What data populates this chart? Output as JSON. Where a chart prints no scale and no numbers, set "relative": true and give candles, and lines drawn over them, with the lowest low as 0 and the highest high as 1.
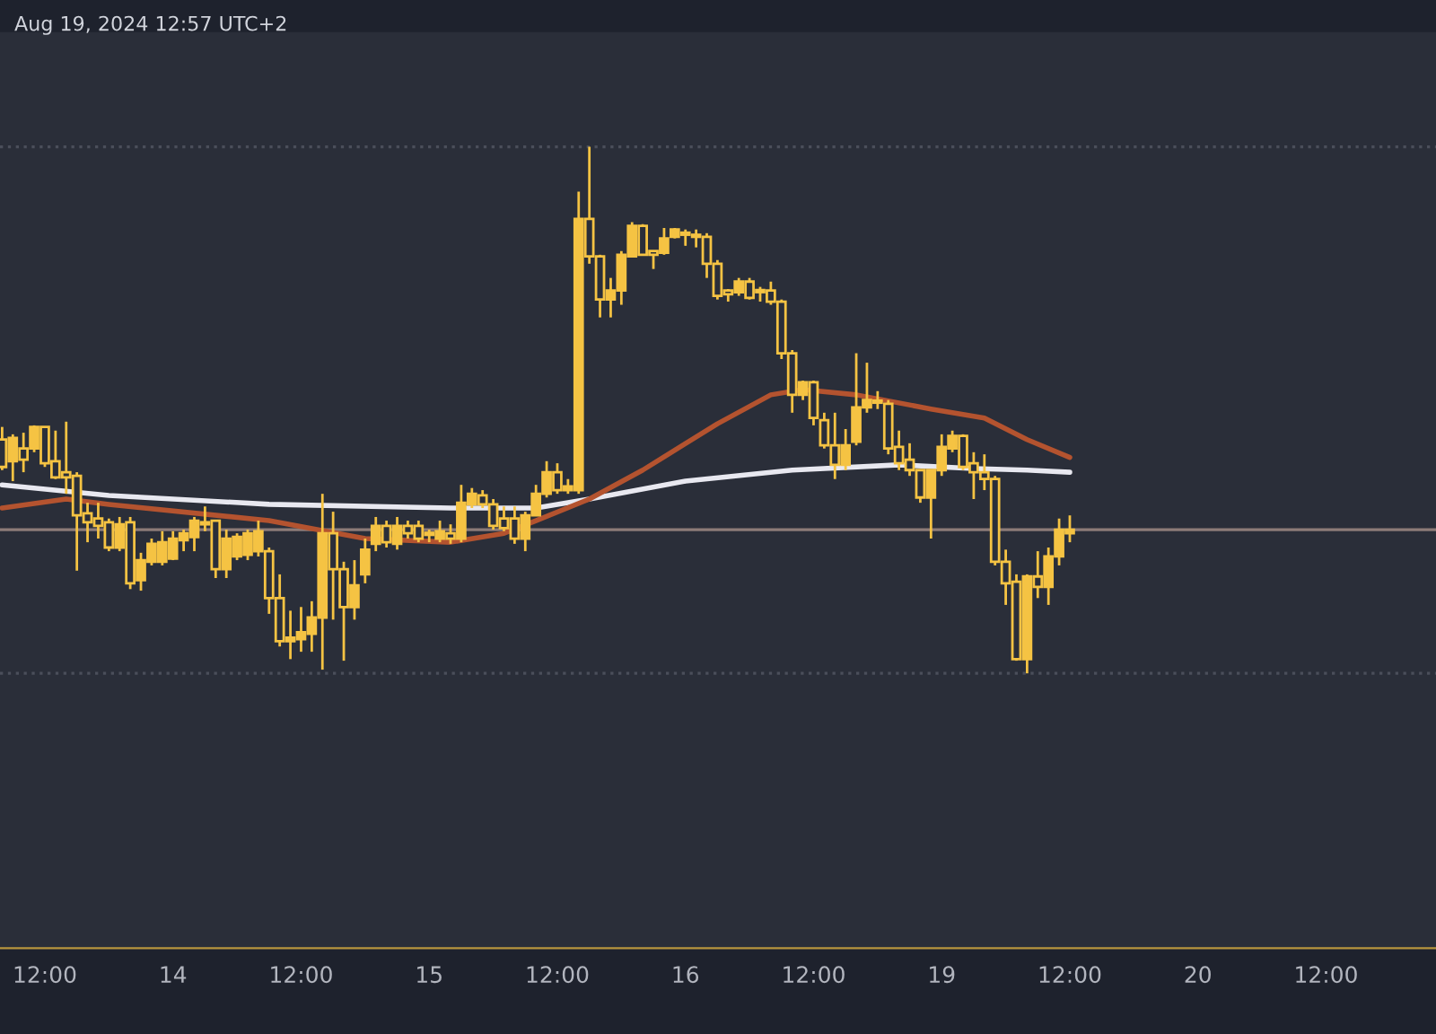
{
  "chart_data": {
    "type": "candlestick",
    "relative": true,
    "color": "#f5c343",
    "categories": [
      null,
      null,
      null,
      null,
      "12:00",
      null,
      null,
      null,
      null,
      null,
      null,
      null,
      null,
      null,
      null,
      null,
      "14",
      null,
      null,
      null,
      null,
      null,
      null,
      null,
      null,
      null,
      null,
      null,
      "12:00",
      null,
      null,
      null,
      null,
      null,
      null,
      null,
      null,
      null,
      null,
      null,
      "15",
      null,
      null,
      null,
      null,
      null,
      null,
      null,
      null,
      null,
      null,
      null,
      "12:00",
      null,
      null,
      null,
      null,
      null,
      null,
      null,
      null,
      null,
      null,
      null,
      "16",
      null,
      null,
      null,
      null,
      null,
      null,
      null,
      null,
      null,
      null,
      null,
      "12:00",
      null,
      null,
      null,
      null,
      null,
      null,
      null,
      null,
      null,
      null,
      null,
      "19",
      null,
      null,
      null,
      null,
      null,
      null,
      null,
      null,
      null,
      null,
      null,
      "12:00",
      null,
      null,
      null,
      null,
      null,
      null,
      null,
      null,
      null,
      null,
      null,
      "20",
      null,
      null,
      null,
      null,
      null,
      null,
      null,
      null,
      null,
      null,
      null,
      "12:00",
      null,
      null,
      null,
      null,
      null,
      null,
      null,
      null,
      null,
      null
    ],
    "ohlc": [
      [
        0.444,
        0.468,
        0.386,
        0.392
      ],
      [
        0.403,
        0.454,
        0.365,
        0.447
      ],
      [
        0.427,
        0.457,
        0.382,
        0.406
      ],
      [
        0.427,
        0.471,
        0.42,
        0.468
      ],
      [
        0.468,
        0.468,
        0.392,
        0.399
      ],
      [
        0.403,
        0.461,
        0.369,
        0.372
      ],
      [
        0.382,
        0.478,
        0.341,
        0.372
      ],
      [
        0.375,
        0.382,
        0.195,
        0.3
      ],
      [
        0.304,
        0.324,
        0.249,
        0.287
      ],
      [
        0.294,
        0.324,
        0.256,
        0.28
      ],
      [
        0.287,
        0.294,
        0.232,
        0.239
      ],
      [
        0.239,
        0.297,
        0.232,
        0.283
      ],
      [
        0.287,
        0.297,
        0.16,
        0.171
      ],
      [
        0.177,
        0.229,
        0.157,
        0.215
      ],
      [
        0.212,
        0.256,
        0.205,
        0.246
      ],
      [
        0.212,
        0.27,
        0.205,
        0.249
      ],
      [
        0.218,
        0.27,
        0.215,
        0.256
      ],
      [
        0.253,
        0.273,
        0.232,
        0.266
      ],
      [
        0.259,
        0.297,
        0.232,
        0.29
      ],
      [
        0.287,
        0.317,
        0.27,
        0.283
      ],
      [
        0.29,
        0.29,
        0.181,
        0.198
      ],
      [
        0.198,
        0.273,
        0.181,
        0.256
      ],
      [
        0.222,
        0.266,
        0.215,
        0.259
      ],
      [
        0.225,
        0.273,
        0.215,
        0.266
      ],
      [
        0.232,
        0.29,
        0.222,
        0.27
      ],
      [
        0.232,
        0.239,
        0.113,
        0.143
      ],
      [
        0.143,
        0.188,
        0.051,
        0.061
      ],
      [
        0.061,
        0.119,
        0.027,
        0.068
      ],
      [
        0.065,
        0.126,
        0.041,
        0.078
      ],
      [
        0.075,
        0.137,
        0.041,
        0.106
      ],
      [
        0.106,
        0.341,
        0.007,
        0.266
      ],
      [
        0.266,
        0.307,
        0.102,
        0.198
      ],
      [
        0.198,
        0.212,
        0.024,
        0.126
      ],
      [
        0.126,
        0.215,
        0.102,
        0.167
      ],
      [
        0.188,
        0.256,
        0.171,
        0.235
      ],
      [
        0.246,
        0.297,
        0.232,
        0.28
      ],
      [
        0.28,
        0.29,
        0.239,
        0.249
      ],
      [
        0.246,
        0.297,
        0.235,
        0.28
      ],
      [
        0.28,
        0.29,
        0.256,
        0.266
      ],
      [
        0.28,
        0.29,
        0.249,
        0.256
      ],
      [
        0.263,
        0.273,
        0.249,
        0.266
      ],
      [
        0.256,
        0.29,
        0.249,
        0.27
      ],
      [
        0.266,
        0.283,
        0.246,
        0.256
      ],
      [
        0.256,
        0.358,
        0.249,
        0.324
      ],
      [
        0.321,
        0.352,
        0.314,
        0.341
      ],
      [
        0.338,
        0.348,
        0.314,
        0.321
      ],
      [
        0.321,
        0.331,
        0.273,
        0.28
      ],
      [
        0.294,
        0.317,
        0.27,
        0.276
      ],
      [
        0.294,
        0.317,
        0.246,
        0.256
      ],
      [
        0.256,
        0.307,
        0.232,
        0.3
      ],
      [
        0.3,
        0.358,
        0.3,
        0.341
      ],
      [
        0.341,
        0.403,
        0.334,
        0.382
      ],
      [
        0.382,
        0.399,
        0.341,
        0.348
      ],
      [
        0.348,
        0.369,
        0.341,
        0.355
      ],
      [
        0.348,
        0.915,
        0.341,
        0.863
      ],
      [
        0.863,
        1.0,
        0.778,
        0.792
      ],
      [
        0.792,
        0.795,
        0.676,
        0.71
      ],
      [
        0.71,
        0.751,
        0.676,
        0.727
      ],
      [
        0.727,
        0.802,
        0.7,
        0.795
      ],
      [
        0.792,
        0.857,
        0.792,
        0.85
      ],
      [
        0.85,
        0.853,
        0.795,
        0.795
      ],
      [
        0.802,
        0.802,
        0.768,
        0.795
      ],
      [
        0.799,
        0.846,
        0.795,
        0.826
      ],
      [
        0.829,
        0.846,
        0.826,
        0.843
      ],
      [
        0.836,
        0.843,
        0.812,
        0.833
      ],
      [
        0.833,
        0.843,
        0.809,
        0.829
      ],
      [
        0.829,
        0.836,
        0.751,
        0.778
      ],
      [
        0.778,
        0.785,
        0.71,
        0.717
      ],
      [
        0.727,
        0.73,
        0.706,
        0.72
      ],
      [
        0.724,
        0.751,
        0.717,
        0.744
      ],
      [
        0.744,
        0.751,
        0.71,
        0.713
      ],
      [
        0.725,
        0.734,
        0.706,
        0.724
      ],
      [
        0.727,
        0.744,
        0.7,
        0.706
      ],
      [
        0.706,
        0.71,
        0.597,
        0.608
      ],
      [
        0.608,
        0.614,
        0.495,
        0.529
      ],
      [
        0.529,
        0.556,
        0.519,
        0.553
      ],
      [
        0.553,
        0.556,
        0.471,
        0.485
      ],
      [
        0.481,
        0.495,
        0.427,
        0.433
      ],
      [
        0.433,
        0.495,
        0.369,
        0.396
      ],
      [
        0.396,
        0.464,
        0.386,
        0.433
      ],
      [
        0.44,
        0.608,
        0.433,
        0.505
      ],
      [
        0.505,
        0.59,
        0.495,
        0.519
      ],
      [
        0.515,
        0.536,
        0.502,
        0.514
      ],
      [
        0.512,
        0.519,
        0.416,
        0.427
      ],
      [
        0.43,
        0.461,
        0.386,
        0.399
      ],
      [
        0.406,
        0.437,
        0.375,
        0.386
      ],
      [
        0.386,
        0.386,
        0.324,
        0.334
      ],
      [
        0.334,
        0.386,
        0.256,
        0.386
      ],
      [
        0.386,
        0.454,
        0.375,
        0.43
      ],
      [
        0.427,
        0.461,
        0.42,
        0.451
      ],
      [
        0.451,
        0.454,
        0.386,
        0.392
      ],
      [
        0.399,
        0.42,
        0.331,
        0.382
      ],
      [
        0.382,
        0.416,
        0.348,
        0.369
      ],
      [
        0.369,
        0.375,
        0.205,
        0.212
      ],
      [
        0.212,
        0.235,
        0.13,
        0.171
      ],
      [
        0.174,
        0.188,
        0.024,
        0.027
      ],
      [
        0.027,
        0.188,
        0.0,
        0.184
      ],
      [
        0.184,
        0.232,
        0.143,
        0.164
      ],
      [
        0.164,
        0.239,
        0.13,
        0.222
      ],
      [
        0.222,
        0.294,
        0.205,
        0.273
      ],
      [
        0.266,
        0.3,
        0.249,
        0.273
      ],
      null,
      null,
      null,
      null,
      null,
      null,
      null,
      null,
      null,
      null,
      null,
      null,
      null,
      null,
      null,
      null,
      null,
      null,
      null,
      null,
      null,
      null,
      null,
      null,
      null,
      null,
      null,
      null,
      null,
      null,
      null,
      null,
      null,
      null
    ],
    "series": [
      {
        "type": "line",
        "color": "#e8e8f0",
        "values": [
          0.358,
          null,
          null,
          null,
          null,
          null,
          null,
          null,
          null,
          null,
          0.338,
          null,
          null,
          null,
          null,
          null,
          null,
          null,
          null,
          null,
          null,
          null,
          null,
          null,
          null,
          0.321,
          null,
          null,
          null,
          null,
          null,
          null,
          null,
          null,
          null,
          null,
          null,
          null,
          null,
          null,
          null,
          null,
          0.314,
          null,
          null,
          null,
          null,
          null,
          null,
          null,
          0.314,
          null,
          null,
          null,
          null,
          0.331,
          null,
          null,
          null,
          null,
          null,
          null,
          null,
          null,
          0.365,
          null,
          null,
          null,
          null,
          null,
          null,
          null,
          null,
          null,
          0.386,
          null,
          null,
          null,
          null,
          null,
          null,
          null,
          null,
          null,
          0.396,
          null,
          null,
          null,
          null,
          null,
          null,
          0.389,
          null,
          null,
          null,
          null,
          0.386,
          null,
          null,
          null,
          0.382,
          null,
          null,
          null,
          null,
          null,
          null,
          null,
          null,
          null,
          null,
          null,
          null,
          null,
          null,
          null,
          null,
          null,
          null,
          null,
          null,
          null,
          null,
          null,
          null,
          null,
          null,
          null,
          null,
          null,
          null,
          null,
          null,
          null,
          null
        ]
      },
      {
        "type": "line",
        "color": "#b4532f",
        "values": [
          0.314,
          null,
          null,
          null,
          null,
          null,
          0.331,
          null,
          null,
          null,
          0.321,
          null,
          null,
          null,
          null,
          null,
          null,
          null,
          null,
          null,
          null,
          null,
          null,
          null,
          null,
          0.29,
          null,
          null,
          null,
          null,
          null,
          null,
          null,
          null,
          0.256,
          null,
          null,
          null,
          null,
          null,
          null,
          null,
          0.249,
          null,
          null,
          null,
          null,
          0.266,
          null,
          null,
          0.29,
          null,
          null,
          null,
          null,
          0.331,
          null,
          null,
          null,
          null,
          0.386,
          null,
          null,
          null,
          null,
          null,
          null,
          0.474,
          null,
          null,
          null,
          null,
          0.529,
          null,
          null,
          0.539,
          null,
          null,
          null,
          null,
          0.529,
          null,
          null,
          null,
          null,
          null,
          null,
          0.502,
          null,
          null,
          null,
          null,
          0.485,
          null,
          null,
          null,
          0.444,
          null,
          null,
          null,
          0.41,
          null,
          null,
          null,
          null,
          null,
          null,
          null,
          null,
          null,
          null,
          null,
          null,
          null,
          null,
          null,
          null,
          null,
          null,
          null,
          null,
          null,
          null,
          null,
          null,
          null,
          null,
          null,
          null,
          null,
          null,
          null,
          null,
          null,
          null
        ]
      }
    ],
    "tick_labels": "x",
    "ref_lines": [
      {
        "axis": "y",
        "value": 0.273,
        "color": "#8c7b78",
        "line_style": "solid"
      },
      {
        "axis": "y",
        "value": 1.0,
        "color": "#4a4e5a",
        "line_style": "dotted"
      },
      {
        "axis": "y",
        "value": 0.0,
        "color": "#4a4e5a",
        "line_style": "dotted"
      }
    ],
    "annotations": [
      "Aug 19, 2024 12:57 UTC+2"
    ]
  }
}
